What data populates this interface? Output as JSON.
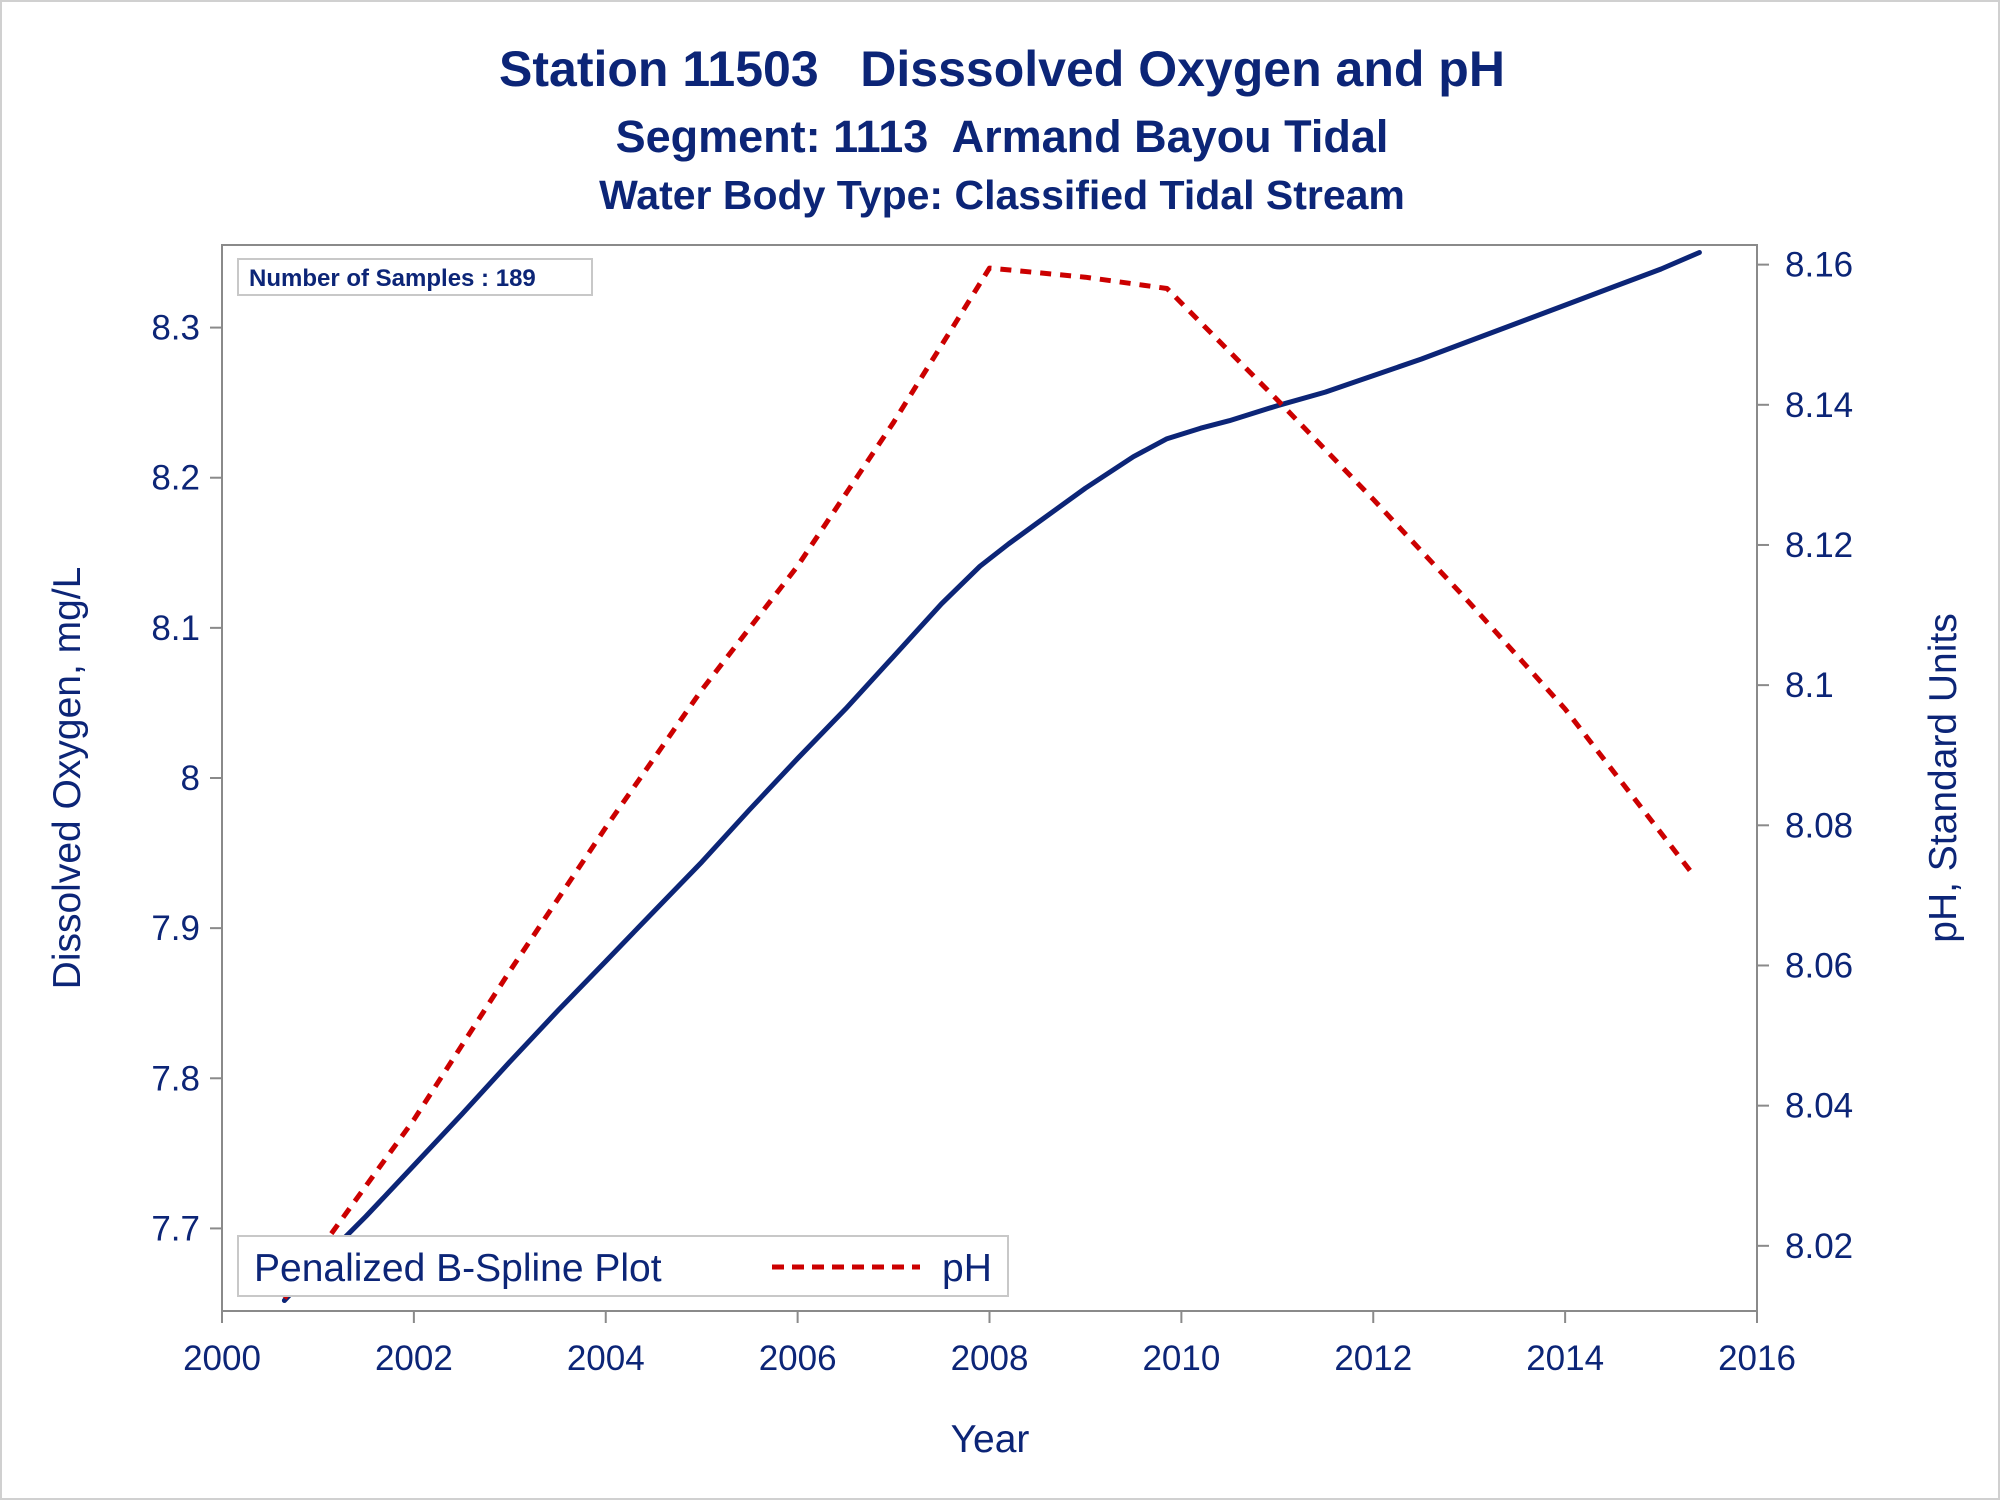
{
  "chart_data": {
    "type": "line",
    "title": "Station 11503   Disssolved Oxygen and pH",
    "subtitle": "Segment: 1113  Armand Bayou Tidal",
    "subtitle2": "Water Body Type: Classified Tidal Stream",
    "xlabel": "Year",
    "ylabel": "Dissolved Oxygen, mg/L",
    "y2label": "pH, Standard Units",
    "xlim": [
      2000,
      2016
    ],
    "ylim": [
      7.645,
      8.355
    ],
    "y2lim": [
      8.0107,
      8.1628
    ],
    "x_ticks": [
      2000,
      2002,
      2004,
      2006,
      2008,
      2010,
      2012,
      2014,
      2016
    ],
    "y_ticks": [
      7.7,
      7.8,
      7.9,
      8,
      8.1,
      8.2,
      8.3
    ],
    "y2_ticks": [
      8.02,
      8.04,
      8.06,
      8.08,
      8.1,
      8.12,
      8.14,
      8.16
    ],
    "inset_label": "Number of Samples : 189",
    "legend": {
      "placement": "bottom-left",
      "title": "Penalized B-Spline Plot",
      "entries": [
        "pH"
      ]
    },
    "series": [
      {
        "axis": "left",
        "style": "solid",
        "color": "#0c2577",
        "x": [
          2000.65,
          2001.0,
          2001.5,
          2002.0,
          2002.5,
          2003.0,
          2003.5,
          2004.0,
          2004.5,
          2005.0,
          2005.5,
          2006.0,
          2006.5,
          2007.0,
          2007.5,
          2007.9,
          2008.2,
          2008.5,
          2009.0,
          2009.5,
          2009.85,
          2010.2,
          2010.5,
          2011.0,
          2011.5,
          2012.0,
          2012.5,
          2013.0,
          2013.5,
          2014.0,
          2014.5,
          2015.0,
          2015.4
        ],
        "values": [
          7.652,
          7.676,
          7.708,
          7.742,
          7.776,
          7.811,
          7.845,
          7.878,
          7.911,
          7.944,
          7.979,
          8.013,
          8.046,
          8.081,
          8.116,
          8.141,
          8.156,
          8.17,
          8.193,
          8.214,
          8.226,
          8.233,
          8.238,
          8.248,
          8.257,
          8.268,
          8.279,
          8.291,
          8.303,
          8.315,
          8.327,
          8.339,
          8.35
        ]
      },
      {
        "name": "pH",
        "axis": "right",
        "style": "dashed",
        "color": "#cc0000",
        "x": [
          2000.65,
          2002.0,
          2003.0,
          2004.0,
          2005.0,
          2006.0,
          2007.0,
          2008.0,
          2009.0,
          2009.85,
          2011.0,
          2012.0,
          2013.0,
          2014.0,
          2015.35
        ],
        "values": [
          8.0125,
          8.038,
          8.0592,
          8.0797,
          8.0993,
          8.117,
          8.1375,
          8.1595,
          8.1582,
          8.1566,
          8.1407,
          8.1265,
          8.1118,
          8.0966,
          8.0727
        ]
      }
    ]
  }
}
